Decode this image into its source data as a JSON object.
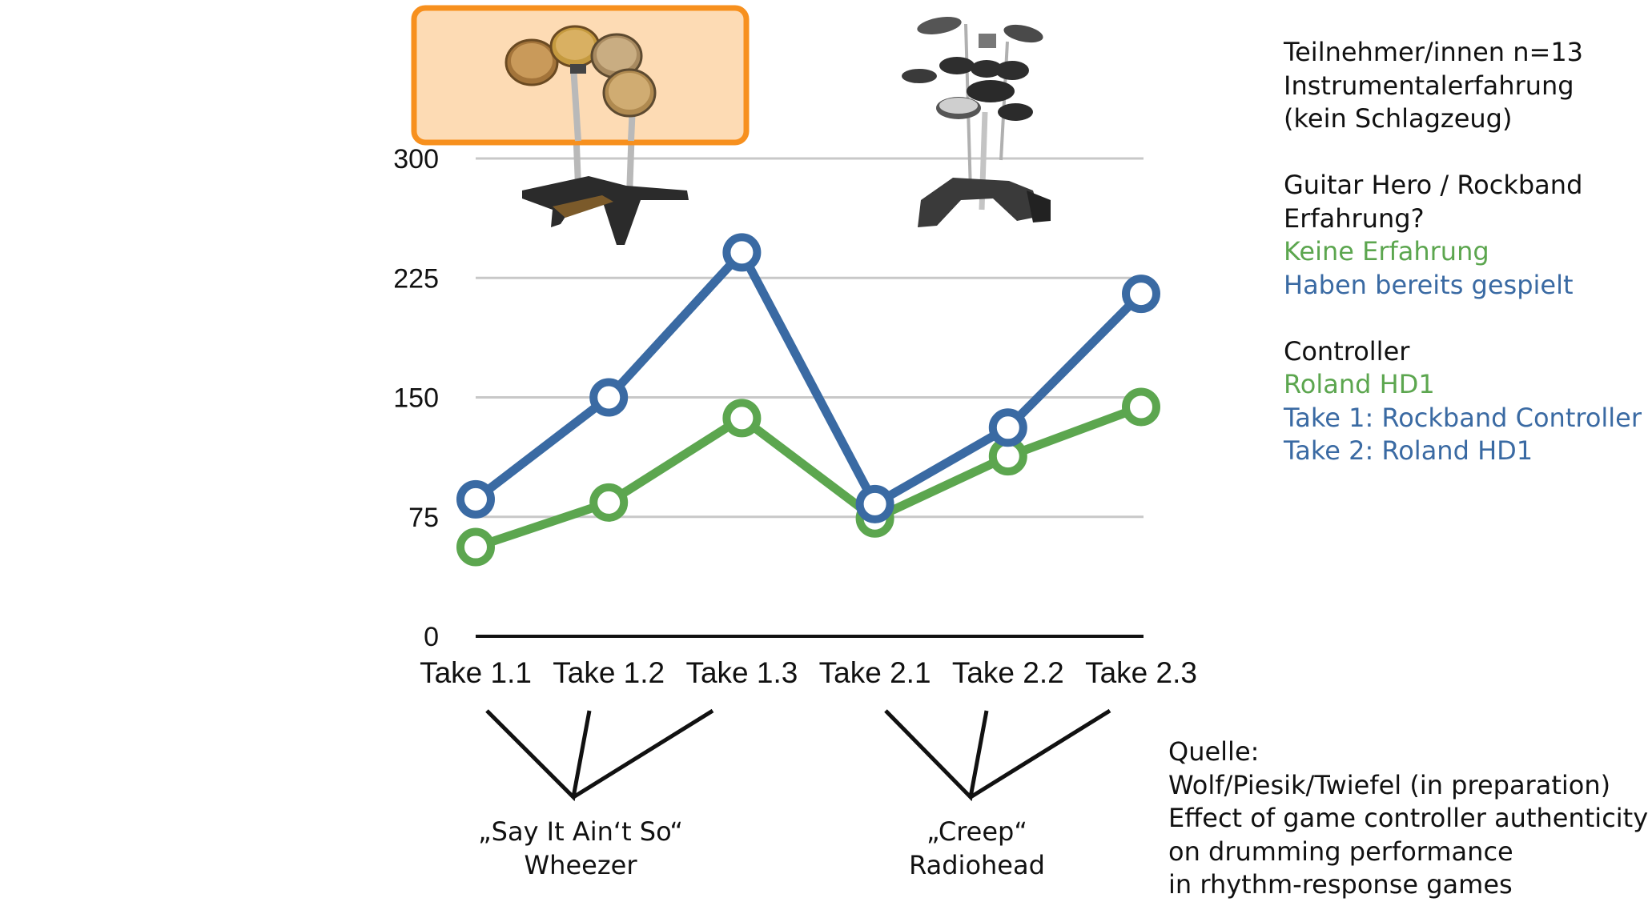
{
  "chart_data": {
    "type": "line",
    "categories": [
      "Take 1.1",
      "Take 1.2",
      "Take 1.3",
      "Take 2.1",
      "Take 2.2",
      "Take 2.3"
    ],
    "series": [
      {
        "name": "Haben bereits gespielt",
        "color": "#3a6aa3",
        "values": [
          86,
          150,
          241,
          83,
          131,
          215
        ]
      },
      {
        "name": "Keine Erfahrung",
        "color": "#5ca64f",
        "values": [
          56,
          84,
          137,
          74,
          113,
          144
        ]
      }
    ],
    "yticks": [
      "300",
      "225",
      "150",
      "75",
      "0"
    ],
    "ylim": [
      0,
      300
    ],
    "grid": true,
    "gridline_color": "#c8c8c8"
  },
  "info": {
    "line1": "Teilnehmer/innen n=13",
    "line2": "Instrumentalerfahrung",
    "line3": "(kein Schlagzeug)",
    "question1": "Guitar Hero / Rockband",
    "question2": "Erfahrung?",
    "legend_green": "Keine Erfahrung",
    "legend_blue": "Haben bereits gespielt",
    "controller_heading": "Controller",
    "controller_green": "Roland HD1",
    "controller_take1": "Take 1: Rockband Controller",
    "controller_take2": "Take 2: Roland HD1"
  },
  "songs": [
    {
      "title": "„Say It Ain‘t So“",
      "artist": "Wheezer"
    },
    {
      "title": "„Creep“",
      "artist": "Radiohead"
    }
  ],
  "source": {
    "label": "Quelle:",
    "line1": "Wolf/Piesik/Twiefel (in preparation)",
    "line2": "Effect of game controller authenticity",
    "line3": "on drumming performance",
    "line4": "in rhythm-response games"
  },
  "images": {
    "rockband_controller": "rockband-drum-controller-icon",
    "roland_kit": "roland-electronic-drum-kit-icon",
    "highlight_color": "#f7901e",
    "highlight_fill": "#fddbb4"
  }
}
